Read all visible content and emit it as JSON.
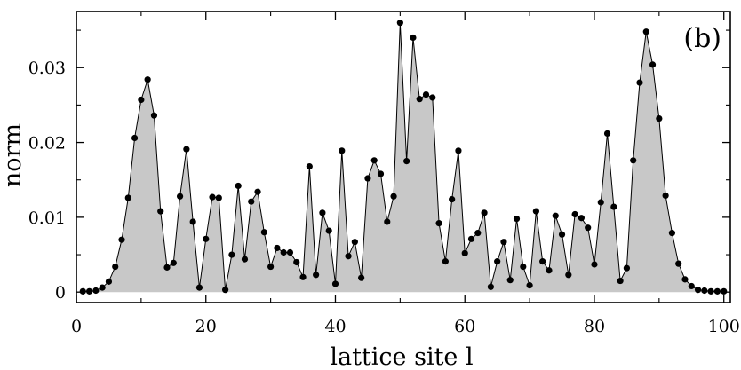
{
  "chart_data": {
    "type": "area",
    "panel_label": "(b)",
    "xlabel": "lattice site l",
    "ylabel": "norm",
    "xlim": [
      0,
      101
    ],
    "ylim": [
      -0.0014,
      0.0375
    ],
    "xticks": [
      0,
      20,
      40,
      60,
      80,
      100
    ],
    "yticks": [
      0,
      0.01,
      0.02,
      0.03
    ],
    "ytick_labels": [
      "0",
      "0.01",
      "0.02",
      "0.03"
    ],
    "xminor": [
      10,
      30,
      50,
      70,
      90
    ],
    "yminor": [
      0.005,
      0.015,
      0.025,
      0.035
    ],
    "fill_color": "#c8c8c8",
    "line_color": "#000000",
    "marker_color": "#000000",
    "x": [
      1,
      2,
      3,
      4,
      5,
      6,
      7,
      8,
      9,
      10,
      11,
      12,
      13,
      14,
      15,
      16,
      17,
      18,
      19,
      20,
      21,
      22,
      23,
      24,
      25,
      26,
      27,
      28,
      29,
      30,
      31,
      32,
      33,
      34,
      35,
      36,
      37,
      38,
      39,
      40,
      41,
      42,
      43,
      44,
      45,
      46,
      47,
      48,
      49,
      50,
      51,
      52,
      53,
      54,
      55,
      56,
      57,
      58,
      59,
      60,
      61,
      62,
      63,
      64,
      65,
      66,
      67,
      68,
      69,
      70,
      71,
      72,
      73,
      74,
      75,
      76,
      77,
      78,
      79,
      80,
      81,
      82,
      83,
      84,
      85,
      86,
      87,
      88,
      89,
      90,
      91,
      92,
      93,
      94,
      95,
      96,
      97,
      98,
      99,
      100
    ],
    "y": [
      0.0001,
      0.0001,
      0.0002,
      0.0006,
      0.0014,
      0.0034,
      0.007,
      0.0126,
      0.0206,
      0.0257,
      0.0284,
      0.0236,
      0.0108,
      0.0033,
      0.0039,
      0.0128,
      0.0191,
      0.0094,
      0.0006,
      0.0071,
      0.0127,
      0.0126,
      0.0003,
      0.005,
      0.0142,
      0.0044,
      0.0121,
      0.0134,
      0.008,
      0.0034,
      0.0059,
      0.0053,
      0.0053,
      0.004,
      0.002,
      0.0168,
      0.0023,
      0.0106,
      0.0082,
      0.0011,
      0.0189,
      0.0048,
      0.0067,
      0.0019,
      0.0152,
      0.0176,
      0.0158,
      0.0094,
      0.0128,
      0.036,
      0.0175,
      0.034,
      0.0258,
      0.0264,
      0.026,
      0.0092,
      0.0041,
      0.0124,
      0.0189,
      0.0052,
      0.0071,
      0.0079,
      0.0106,
      0.0007,
      0.0041,
      0.0067,
      0.0016,
      0.0098,
      0.0034,
      0.0009,
      0.0108,
      0.0041,
      0.0029,
      0.0102,
      0.0077,
      0.0023,
      0.0104,
      0.0099,
      0.0086,
      0.0037,
      0.012,
      0.0212,
      0.0114,
      0.0015,
      0.0032,
      0.0176,
      0.028,
      0.0348,
      0.0304,
      0.0232,
      0.0129,
      0.0079,
      0.0038,
      0.0017,
      0.0008,
      0.0003,
      0.0002,
      0.0001,
      0.0001,
      0.0001
    ],
    "grid": false,
    "legend": "none"
  }
}
